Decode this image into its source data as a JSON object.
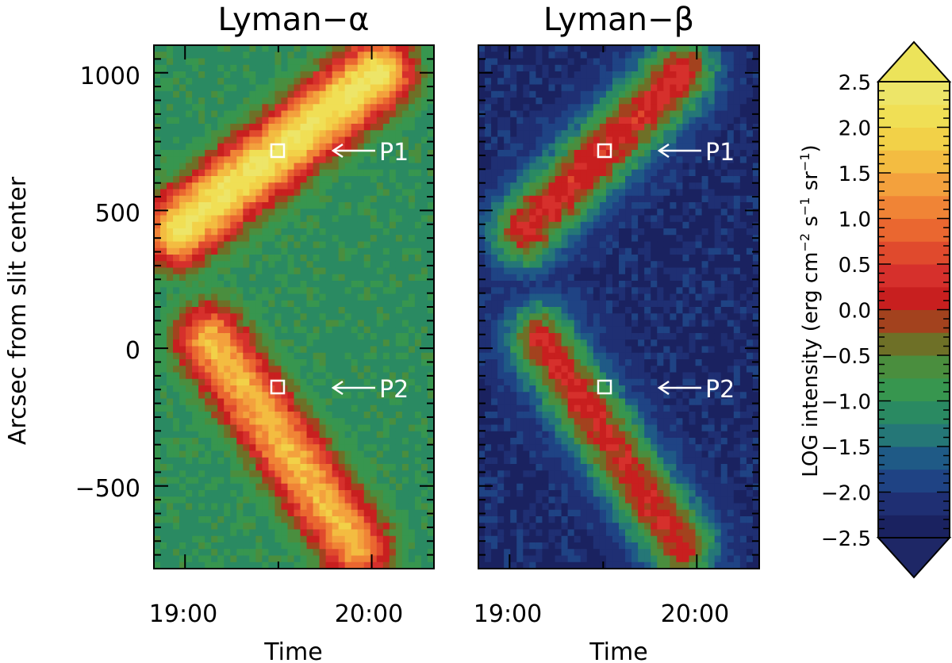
{
  "chart_data": [
    {
      "type": "heatmap",
      "title": "Lyman−α",
      "xlabel": "Time",
      "ylabel": "Arcsec from slit center",
      "xlim": [
        "18:50",
        "20:20"
      ],
      "ylim": [
        -800,
        1100
      ],
      "x_ticks": [
        "19:00",
        "20:00"
      ],
      "y_ticks": [
        "1000",
        "500",
        "0",
        "−500"
      ],
      "features": [
        {
          "type": "emission-ridge",
          "from": {
            "time": "18:58",
            "arcsec": 430
          },
          "to": {
            "time": "20:02",
            "arcsec": 1000
          },
          "peak_log_intensity": 2.3
        },
        {
          "type": "emission-ridge",
          "from": {
            "time": "19:08",
            "arcsec": 30
          },
          "to": {
            "time": "19:55",
            "arcsec": -720
          },
          "peak_log_intensity": 1.6
        }
      ],
      "background_log_intensity": -1.2,
      "annotations": [
        {
          "label": "P1",
          "time": "19:30",
          "arcsec": 720
        },
        {
          "label": "P2",
          "time": "19:30",
          "arcsec": -140
        }
      ]
    },
    {
      "type": "heatmap",
      "title": "Lyman−β",
      "xlabel": "Time",
      "ylabel": "",
      "xlim": [
        "18:50",
        "20:20"
      ],
      "ylim": [
        -800,
        1100
      ],
      "x_ticks": [
        "19:00",
        "20:00"
      ],
      "y_ticks": [],
      "features": [
        {
          "type": "emission-ridge",
          "from": {
            "time": "19:05",
            "arcsec": 430
          },
          "to": {
            "time": "19:55",
            "arcsec": 1000
          },
          "peak_log_intensity": 0.3
        },
        {
          "type": "emission-ridge",
          "from": {
            "time": "19:10",
            "arcsec": 30
          },
          "to": {
            "time": "19:55",
            "arcsec": -720
          },
          "peak_log_intensity": 0.2
        }
      ],
      "background_log_intensity": -2.3,
      "annotations": [
        {
          "label": "P1",
          "time": "19:30",
          "arcsec": 720
        },
        {
          "label": "P2",
          "time": "19:30",
          "arcsec": -140
        }
      ]
    }
  ],
  "colorbar": {
    "label_main": "LOG intensity (erg cm",
    "sup1": "−2",
    "mid1": " s",
    "sup2": "−1",
    "mid2": " sr",
    "sup3": "−1",
    "label_end": ")",
    "range": [
      -2.5,
      2.5
    ],
    "tick_labels": [
      "2.5",
      "2.0",
      "1.5",
      "1.0",
      "0.5",
      "0.0",
      "−0.5",
      "−1.0",
      "−1.5",
      "−2.0",
      "−2.5"
    ],
    "tick_values": [
      2.5,
      2.0,
      1.5,
      1.0,
      0.5,
      0.0,
      -0.5,
      -1.0,
      -1.5,
      -2.0,
      -2.5
    ],
    "over_color": "#ece35a",
    "under_color": "#1e2766",
    "colors": [
      "#1a2260",
      "#1f2f73",
      "#1f4384",
      "#1f5a86",
      "#257777",
      "#2a8a62",
      "#37964f",
      "#4a8e3e",
      "#6e7027",
      "#a3421e",
      "#c81f1f",
      "#d6302c",
      "#e04a2d",
      "#ea6730",
      "#f08436",
      "#f3a13d",
      "#f3bc41",
      "#f2d148",
      "#f0df55",
      "#ede568"
    ]
  }
}
